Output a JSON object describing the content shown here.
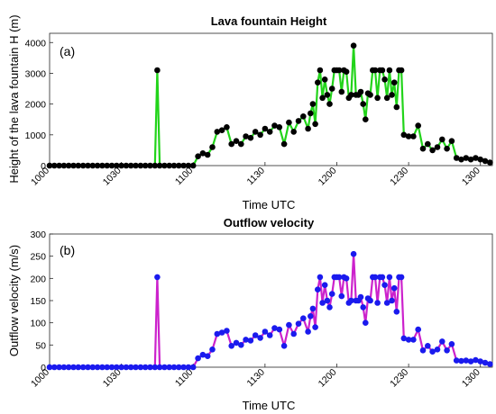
{
  "chart_data": [
    {
      "type": "line",
      "panel_label": "(a)",
      "title": "Lava fountain Height",
      "xlabel": "Time UTC",
      "ylabel": "Height of the lava fountain H (m)",
      "x_tick_labels": [
        "1000",
        "1030",
        "1100",
        "1130",
        "1200",
        "1230",
        "1300"
      ],
      "xlim": [
        "10:00",
        "13:05"
      ],
      "ylim": [
        0,
        4300
      ],
      "y_ticks": [
        0,
        1000,
        2000,
        3000,
        4000
      ],
      "line_color": "#22d41a",
      "marker_color": "#000000",
      "series": [
        {
          "x": [
            "10:00",
            "10:02",
            "10:04",
            "10:06",
            "10:08",
            "10:10",
            "10:12",
            "10:14",
            "10:16",
            "10:18",
            "10:20",
            "10:22",
            "10:24",
            "10:26",
            "10:28",
            "10:30",
            "10:32",
            "10:34",
            "10:36",
            "10:38",
            "10:40",
            "10:42",
            "10:44",
            "10:45",
            "10:46",
            "10:48",
            "10:50",
            "10:52",
            "10:54",
            "10:56",
            "10:58",
            "11:00",
            "11:02",
            "11:04",
            "11:06",
            "11:08",
            "11:10",
            "11:12",
            "11:14",
            "11:16",
            "11:18",
            "11:20",
            "11:22",
            "11:24",
            "11:26",
            "11:28",
            "11:30",
            "11:32",
            "11:34",
            "11:36",
            "11:38",
            "11:40",
            "11:42",
            "11:44",
            "11:46",
            "11:48",
            "11:49",
            "11:50",
            "11:51",
            "11:52",
            "11:53",
            "11:54",
            "11:55",
            "11:56",
            "11:57",
            "11:58",
            "11:59",
            "12:00",
            "12:01",
            "12:02",
            "12:03",
            "12:04",
            "12:05",
            "12:06",
            "12:07",
            "12:08",
            "12:09",
            "12:10",
            "12:11",
            "12:12",
            "12:13",
            "12:14",
            "12:15",
            "12:16",
            "12:17",
            "12:18",
            "12:19",
            "12:20",
            "12:21",
            "12:22",
            "12:23",
            "12:24",
            "12:25",
            "12:26",
            "12:27",
            "12:28",
            "12:30",
            "12:32",
            "12:34",
            "12:36",
            "12:38",
            "12:40",
            "12:42",
            "12:44",
            "12:46",
            "12:48",
            "12:50",
            "12:52",
            "12:54",
            "12:56",
            "12:58",
            "13:00",
            "13:02",
            "13:04"
          ],
          "y": [
            0,
            0,
            0,
            0,
            0,
            0,
            0,
            0,
            0,
            0,
            0,
            0,
            0,
            0,
            0,
            0,
            0,
            0,
            0,
            0,
            0,
            0,
            0,
            3100,
            0,
            0,
            0,
            0,
            0,
            0,
            0,
            0,
            300,
            400,
            350,
            600,
            1100,
            1150,
            1250,
            700,
            800,
            700,
            950,
            900,
            1100,
            1000,
            1200,
            1100,
            1300,
            1250,
            700,
            1400,
            1100,
            1450,
            1600,
            1200,
            1700,
            2000,
            1350,
            2700,
            3100,
            2200,
            2800,
            2300,
            2000,
            2500,
            3100,
            3100,
            3100,
            2400,
            3100,
            3050,
            2200,
            2300,
            3900,
            2300,
            2300,
            2400,
            2000,
            1500,
            2350,
            2300,
            3100,
            3100,
            2200,
            3100,
            3100,
            2800,
            2200,
            3100,
            2300,
            2700,
            1900,
            3100,
            3100,
            1000,
            950,
            950,
            1300,
            550,
            700,
            500,
            600,
            850,
            550,
            800,
            250,
            200,
            250,
            200,
            250,
            200,
            150,
            100
          ]
        }
      ]
    },
    {
      "type": "line",
      "panel_label": "(b)",
      "title": "Outflow velocity",
      "xlabel": "Time UTC",
      "ylabel": "Outflow velocity (m/s)",
      "x_tick_labels": [
        "1000",
        "1030",
        "1100",
        "1130",
        "1200",
        "1230",
        "1300"
      ],
      "xlim": [
        "10:00",
        "13:05"
      ],
      "ylim": [
        0,
        300
      ],
      "y_ticks": [
        0,
        50,
        100,
        150,
        200,
        250,
        300
      ],
      "line_color": "#cc22cc",
      "marker_color": "#1a1aee",
      "series": [
        {
          "x": [
            "10:00",
            "10:02",
            "10:04",
            "10:06",
            "10:08",
            "10:10",
            "10:12",
            "10:14",
            "10:16",
            "10:18",
            "10:20",
            "10:22",
            "10:24",
            "10:26",
            "10:28",
            "10:30",
            "10:32",
            "10:34",
            "10:36",
            "10:38",
            "10:40",
            "10:42",
            "10:44",
            "10:45",
            "10:46",
            "10:48",
            "10:50",
            "10:52",
            "10:54",
            "10:56",
            "10:58",
            "11:00",
            "11:02",
            "11:04",
            "11:06",
            "11:08",
            "11:10",
            "11:12",
            "11:14",
            "11:16",
            "11:18",
            "11:20",
            "11:22",
            "11:24",
            "11:26",
            "11:28",
            "11:30",
            "11:32",
            "11:34",
            "11:36",
            "11:38",
            "11:40",
            "11:42",
            "11:44",
            "11:46",
            "11:48",
            "11:49",
            "11:50",
            "11:51",
            "11:52",
            "11:53",
            "11:54",
            "11:55",
            "11:56",
            "11:57",
            "11:58",
            "11:59",
            "12:00",
            "12:01",
            "12:02",
            "12:03",
            "12:04",
            "12:05",
            "12:06",
            "12:07",
            "12:08",
            "12:09",
            "12:10",
            "12:11",
            "12:12",
            "12:13",
            "12:14",
            "12:15",
            "12:16",
            "12:17",
            "12:18",
            "12:19",
            "12:20",
            "12:21",
            "12:22",
            "12:23",
            "12:24",
            "12:25",
            "12:26",
            "12:27",
            "12:28",
            "12:30",
            "12:32",
            "12:34",
            "12:36",
            "12:38",
            "12:40",
            "12:42",
            "12:44",
            "12:46",
            "12:48",
            "12:50",
            "12:52",
            "12:54",
            "12:56",
            "12:58",
            "13:00",
            "13:02",
            "13:04"
          ],
          "y": [
            0,
            0,
            0,
            0,
            0,
            0,
            0,
            0,
            0,
            0,
            0,
            0,
            0,
            0,
            0,
            0,
            0,
            0,
            0,
            0,
            0,
            0,
            0,
            203,
            0,
            0,
            0,
            0,
            0,
            0,
            0,
            0,
            20,
            28,
            25,
            40,
            75,
            78,
            82,
            48,
            55,
            50,
            62,
            60,
            72,
            66,
            80,
            72,
            88,
            85,
            48,
            95,
            75,
            98,
            110,
            80,
            115,
            132,
            90,
            175,
            203,
            145,
            185,
            150,
            135,
            165,
            203,
            203,
            203,
            160,
            203,
            200,
            145,
            150,
            255,
            150,
            150,
            158,
            135,
            100,
            155,
            150,
            203,
            203,
            145,
            203,
            203,
            185,
            145,
            203,
            150,
            178,
            125,
            203,
            203,
            65,
            62,
            62,
            85,
            38,
            48,
            35,
            40,
            58,
            38,
            52,
            15,
            14,
            15,
            13,
            16,
            13,
            10,
            7
          ]
        }
      ]
    }
  ]
}
